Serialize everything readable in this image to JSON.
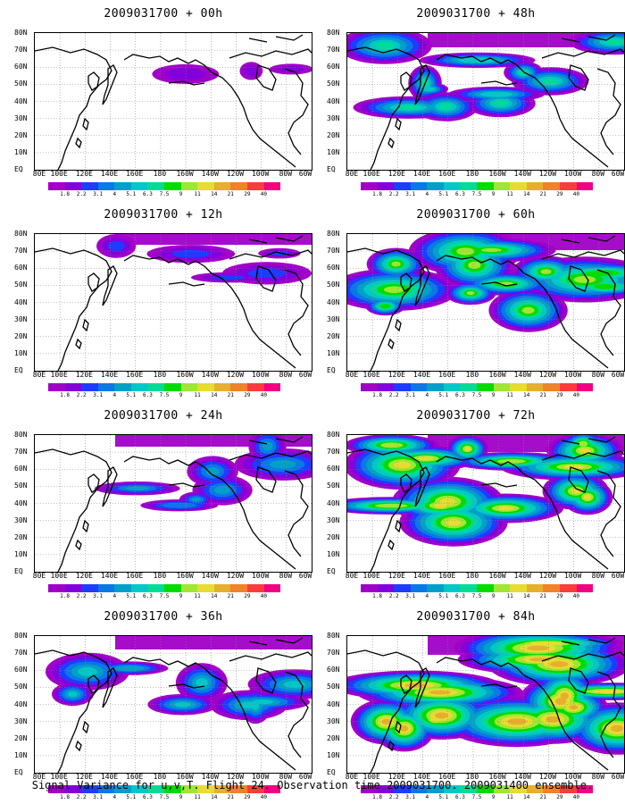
{
  "caption": "Signal Variance for u,v,T. Flight 24. Observation time 2009031700. 2009031400 ensemble.",
  "panels": [
    {
      "title": "2009031700 + 00h",
      "lead": 0
    },
    {
      "title": "2009031700 + 48h",
      "lead": 48
    },
    {
      "title": "2009031700 + 12h",
      "lead": 12
    },
    {
      "title": "2009031700 + 60h",
      "lead": 60
    },
    {
      "title": "2009031700 + 24h",
      "lead": 24
    },
    {
      "title": "2009031700 + 72h",
      "lead": 72
    },
    {
      "title": "2009031700 + 36h",
      "lead": 36
    },
    {
      "title": "2009031700 + 84h",
      "lead": 84
    }
  ],
  "x_ticks": [
    "80E",
    "100E",
    "120E",
    "140E",
    "160E",
    "180",
    "160W",
    "140W",
    "120W",
    "100W",
    "80W",
    "60W"
  ],
  "y_ticks": [
    "80N",
    "70N",
    "60N",
    "50N",
    "40N",
    "30N",
    "20N",
    "10N",
    "EQ"
  ],
  "colorbar": {
    "labels": [
      "1.8",
      "2.2",
      "3.1",
      "4",
      "5.1",
      "6.3",
      "7.5",
      "9",
      "11",
      "14",
      "21",
      "29",
      "40"
    ],
    "colors": [
      "#a000c8",
      "#8200dc",
      "#1e3cff",
      "#0a78e6",
      "#00a0c8",
      "#00c8c8",
      "#00dc96",
      "#00dc00",
      "#a0e632",
      "#e6dc32",
      "#e6af2d",
      "#f08228",
      "#fa3c3c",
      "#f00082"
    ]
  }
}
